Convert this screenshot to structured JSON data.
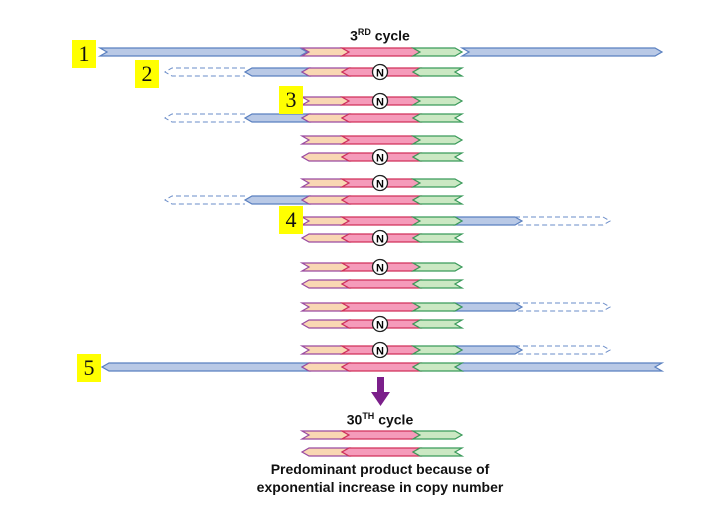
{
  "title": {
    "prefix": "3",
    "sup": "RD",
    "suffix": " cycle"
  },
  "final_title": {
    "prefix": "30",
    "sup": "TH",
    "suffix": " cycle"
  },
  "caption": [
    "Predominant product because of",
    "exponential increase in copy number"
  ],
  "labels": [
    "1",
    "2",
    "3",
    "4",
    "5"
  ],
  "mutation_marker": "N",
  "colors": {
    "orange": "#f9d7b3",
    "pink": "#f59bba",
    "green": "#cbe8c3",
    "blue": "#b9c9e6",
    "arrow": "#7b1f8a",
    "label_bg": "#ffff00"
  },
  "strands": [
    {
      "dir": "forward",
      "mutant": false,
      "extension": "full"
    },
    {
      "dir": "reverse",
      "mutant": true,
      "extension": "left-partial"
    },
    {
      "dir": "forward",
      "mutant": true,
      "extension": "none"
    },
    {
      "dir": "reverse",
      "mutant": false,
      "extension": "left-partial"
    },
    {
      "dir": "forward",
      "mutant": false,
      "extension": "none"
    },
    {
      "dir": "reverse",
      "mutant": true,
      "extension": "none"
    },
    {
      "dir": "forward",
      "mutant": true,
      "extension": "none"
    },
    {
      "dir": "reverse",
      "mutant": false,
      "extension": "left-partial"
    },
    {
      "dir": "forward",
      "mutant": false,
      "extension": "right-partial"
    },
    {
      "dir": "reverse",
      "mutant": true,
      "extension": "none"
    },
    {
      "dir": "forward",
      "mutant": true,
      "extension": "none"
    },
    {
      "dir": "reverse",
      "mutant": false,
      "extension": "none"
    },
    {
      "dir": "forward",
      "mutant": false,
      "extension": "right-partial"
    },
    {
      "dir": "reverse",
      "mutant": true,
      "extension": "none"
    },
    {
      "dir": "forward",
      "mutant": true,
      "extension": "right-partial"
    },
    {
      "dir": "reverse",
      "mutant": false,
      "extension": "full"
    }
  ],
  "final_strands": [
    {
      "dir": "forward",
      "mutant": false,
      "extension": "none"
    },
    {
      "dir": "reverse",
      "mutant": false,
      "extension": "none"
    }
  ]
}
